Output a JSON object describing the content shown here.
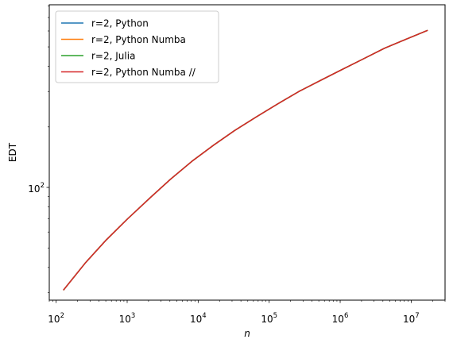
{
  "chart_data": {
    "type": "line",
    "title": "",
    "xlabel": "n",
    "ylabel": "EDT",
    "xscale": "log",
    "yscale": "log",
    "xlim": [
      80,
      30000000
    ],
    "ylim": [
      27.5,
      810
    ],
    "x_ticks": [
      {
        "value": 100,
        "base": "10",
        "exp": "2"
      },
      {
        "value": 1000,
        "base": "10",
        "exp": "3"
      },
      {
        "value": 10000,
        "base": "10",
        "exp": "4"
      },
      {
        "value": 100000,
        "base": "10",
        "exp": "5"
      },
      {
        "value": 1000000,
        "base": "10",
        "exp": "6"
      },
      {
        "value": 10000000,
        "base": "10",
        "exp": "7"
      }
    ],
    "y_ticks": [
      {
        "value": 100,
        "base": "10",
        "exp": "2"
      }
    ],
    "grid": false,
    "legend_position": "upper-left",
    "x": [
      128,
      256,
      512,
      1024,
      2048,
      4096,
      8192,
      16384,
      32768,
      65536,
      131072,
      262144,
      524288,
      1048576,
      2097152,
      4194304,
      8388608,
      16777216
    ],
    "series": [
      {
        "name": "r=2, Python",
        "color": "#1f77b4",
        "values": [
          31.0,
          42.0,
          55.0,
          70.0,
          88.0,
          110.0,
          135.0,
          162.0,
          192.0,
          224.0,
          260.0,
          300.0,
          340.0,
          385.0,
          435.0,
          492.0,
          545.0,
          603.0
        ]
      },
      {
        "name": "r=2, Python Numba",
        "color": "#ff7f0e",
        "values": [
          31.0,
          42.0,
          55.0,
          70.0,
          88.0,
          110.0,
          135.0,
          162.0,
          192.0,
          224.0,
          260.0,
          300.0,
          340.0,
          385.0,
          435.0,
          492.0,
          545.0,
          603.0
        ]
      },
      {
        "name": "r=2, Julia",
        "color": "#2ca02c",
        "values": [
          31.0,
          42.0,
          55.0,
          70.0,
          88.0,
          110.0,
          135.0,
          162.0,
          192.0,
          224.0,
          260.0,
          300.0,
          340.0,
          385.0,
          435.0,
          492.0,
          545.0,
          603.0
        ]
      },
      {
        "name": "r=2, Python Numba //",
        "color": "#d62728",
        "values": [
          31.0,
          42.0,
          55.0,
          70.0,
          88.0,
          110.0,
          135.0,
          162.0,
          192.0,
          224.0,
          260.0,
          300.0,
          340.0,
          385.0,
          435.0,
          492.0,
          545.0,
          603.0
        ]
      }
    ]
  }
}
